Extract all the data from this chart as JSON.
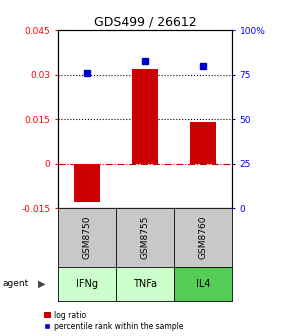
{
  "title": "GDS499 / 26612",
  "samples": [
    "GSM8750",
    "GSM8755",
    "GSM8760"
  ],
  "agents": [
    "IFNg",
    "TNFa",
    "IL4"
  ],
  "log_ratios": [
    -0.013,
    0.032,
    0.014
  ],
  "percentile_ranks": [
    76,
    83,
    80
  ],
  "left_ylim": [
    -0.015,
    0.045
  ],
  "right_ylim": [
    0,
    100
  ],
  "left_yticks": [
    -0.015,
    0,
    0.015,
    0.03,
    0.045
  ],
  "right_yticks": [
    0,
    25,
    50,
    75,
    100
  ],
  "left_ytick_labels": [
    "-0.015",
    "0",
    "0.015",
    "0.03",
    "0.045"
  ],
  "right_ytick_labels": [
    "0",
    "25",
    "50",
    "75",
    "100%"
  ],
  "bar_color": "#cc0000",
  "dot_color": "#0000cc",
  "agent_colors": [
    "#ccffcc",
    "#ccffcc",
    "#55cc55"
  ],
  "gsm_bg_color": "#c8c8c8",
  "grid_lines": [
    0.015,
    0.03
  ],
  "zero_line": 0,
  "bar_width": 0.45,
  "title_fontsize": 9,
  "tick_fontsize": 6.5,
  "legend_fontsize": 5.5
}
